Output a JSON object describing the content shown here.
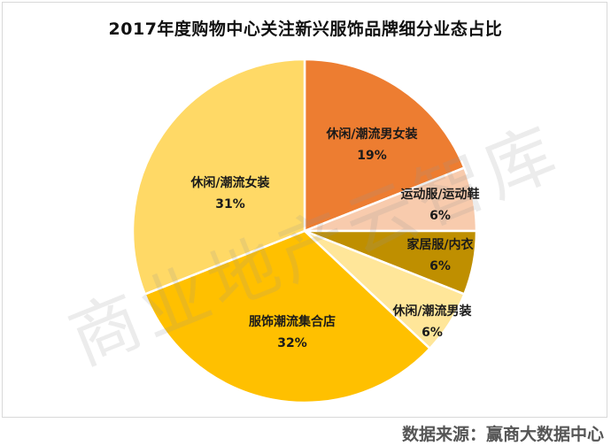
{
  "title": "2017年度购物中心关注新兴服饰品牌细分业态占比",
  "watermark": "商业地产云智库",
  "source": "数据来源：赢商大数据中心",
  "chart_data": {
    "type": "pie",
    "title": "2017年度购物中心关注新兴服饰品牌细分业态占比",
    "categories": [
      "休闲/潮流男女装",
      "运动服/运动鞋",
      "家居服/内衣",
      "休闲/潮流男装",
      "服饰潮流集合店",
      "休闲/潮流女装"
    ],
    "values": [
      19,
      6,
      6,
      6,
      32,
      31
    ],
    "unit": "%",
    "colors": [
      "#ED7D31",
      "#F8CBAD",
      "#BF8F00",
      "#FFE699",
      "#FFC000",
      "#FFD966"
    ],
    "start_angle_deg": 0,
    "direction": "clockwise",
    "legend": "none (data labels inside slices)",
    "source": "数据来源：赢商大数据中心"
  },
  "slices": [
    {
      "label": "休闲/潮流男女装",
      "pct": "19%"
    },
    {
      "label": "运动服/运动鞋",
      "pct": "6%"
    },
    {
      "label": "家居服/内衣",
      "pct": "6%"
    },
    {
      "label": "休闲/潮流男装",
      "pct": "6%"
    },
    {
      "label": "服饰潮流集合店",
      "pct": "32%"
    },
    {
      "label": "休闲/潮流女装",
      "pct": "31%"
    }
  ]
}
